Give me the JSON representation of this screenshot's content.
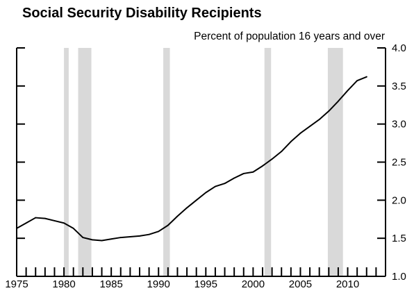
{
  "chart_data": {
    "type": "line",
    "title": "Social Security Disability Recipients",
    "subtitle": "Percent of population 16 years and over",
    "xlabel": "",
    "ylabel": "",
    "xlim": [
      1975,
      2014
    ],
    "ylim": [
      1.0,
      4.0
    ],
    "x_ticks": [
      "1975",
      "1980",
      "1985",
      "1990",
      "1995",
      "2000",
      "2005",
      "2010"
    ],
    "y_ticks": [
      "1.0",
      "1.5",
      "2.0",
      "2.5",
      "3.0",
      "3.5",
      "4.0"
    ],
    "y_axis_side": "right",
    "grid": false,
    "legend": "none",
    "line_color": "#000000",
    "recession_color": "#d9d9d9",
    "recession_periods": [
      [
        1980.0,
        1980.5
      ],
      [
        1981.5,
        1982.9
      ],
      [
        1990.5,
        1991.2
      ],
      [
        2001.2,
        2001.9
      ],
      [
        2007.9,
        2009.5
      ]
    ],
    "series": [
      {
        "x": [
          1975,
          1976,
          1977,
          1978,
          1979,
          1980,
          1981,
          1982,
          1983,
          1984,
          1985,
          1986,
          1987,
          1988,
          1989,
          1990,
          1991,
          1992,
          1993,
          1994,
          1995,
          1996,
          1997,
          1998,
          1999,
          2000,
          2001,
          2002,
          2003,
          2004,
          2005,
          2006,
          2007,
          2008,
          2009,
          2010,
          2011,
          2012
        ],
        "values": [
          1.63,
          1.7,
          1.77,
          1.76,
          1.73,
          1.7,
          1.63,
          1.51,
          1.48,
          1.47,
          1.49,
          1.51,
          1.52,
          1.53,
          1.55,
          1.59,
          1.67,
          1.79,
          1.9,
          2.0,
          2.1,
          2.18,
          2.22,
          2.29,
          2.35,
          2.37,
          2.45,
          2.54,
          2.64,
          2.77,
          2.88,
          2.97,
          3.06,
          3.17,
          3.3,
          3.44,
          3.57,
          3.62
        ]
      }
    ]
  }
}
